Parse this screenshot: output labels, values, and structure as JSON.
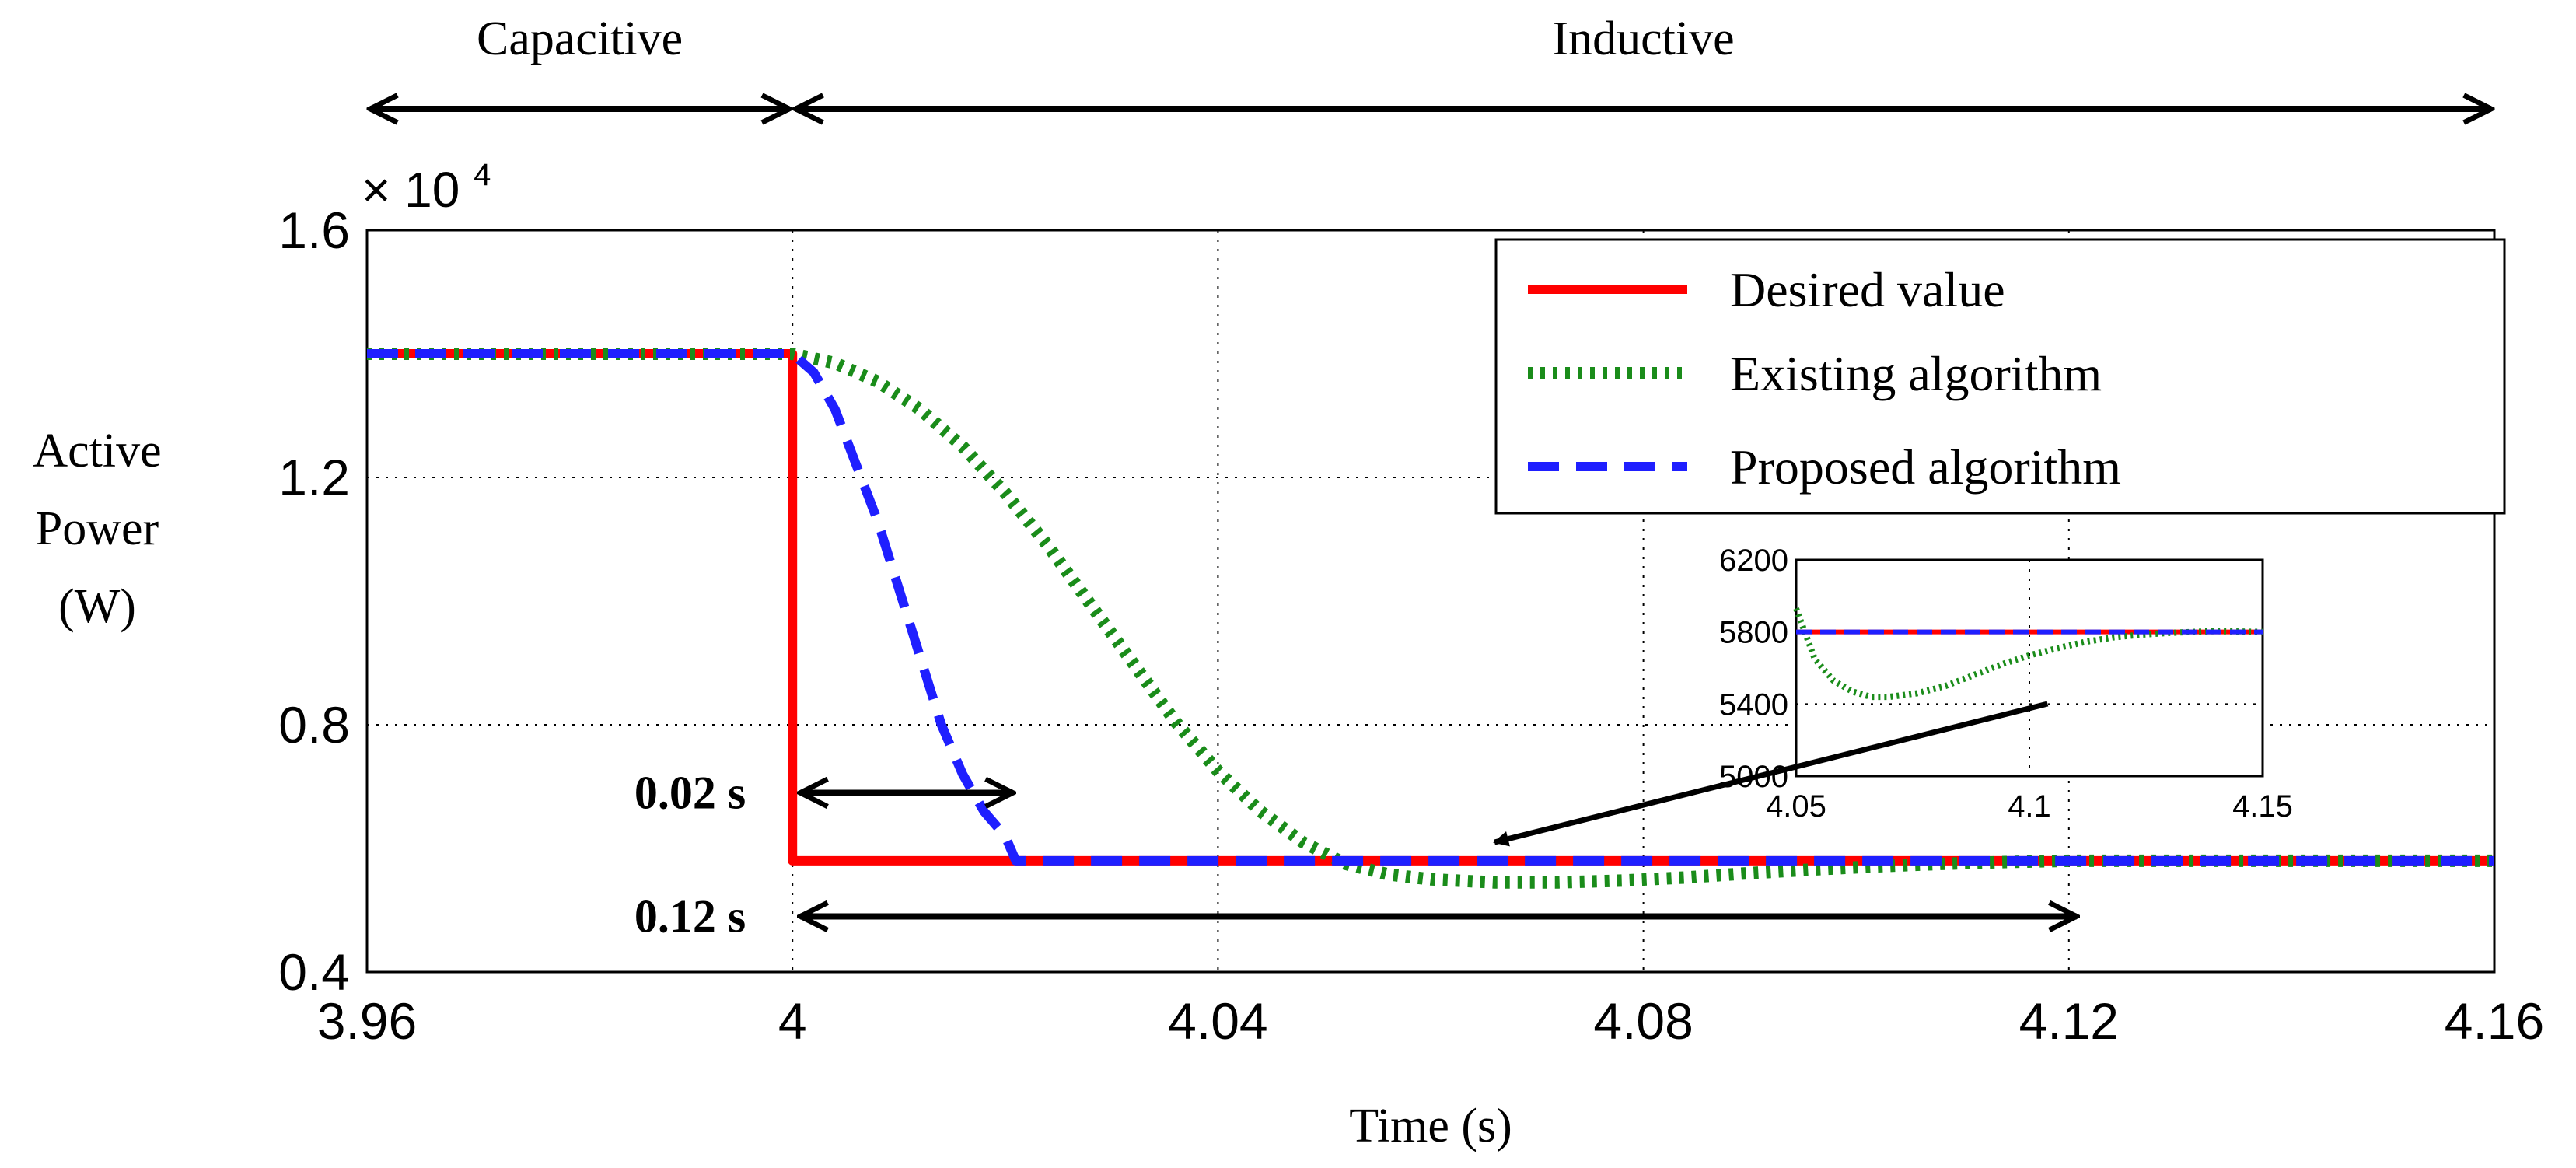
{
  "chart_data": [
    {
      "id": "main",
      "type": "line",
      "title": "",
      "xlabel": "Time (s)",
      "ylabel": [
        "Active",
        "Power",
        "(W)"
      ],
      "xlim": [
        3.96,
        4.16
      ],
      "ylim": [
        0.4,
        1.6
      ],
      "y_scale_label": "× 10",
      "y_scale_exp": "4",
      "xticks": [
        3.96,
        4,
        4.04,
        4.08,
        4.12,
        4.16
      ],
      "xtick_labels": [
        "3.96",
        "4",
        "4.04",
        "4.08",
        "4.12",
        "4.16"
      ],
      "yticks": [
        0.4,
        0.8,
        1.2,
        1.6
      ],
      "ytick_labels": [
        "0.4",
        "0.8",
        "1.2",
        "1.6"
      ],
      "grid": true,
      "legend": "top-right",
      "series": [
        {
          "name": "Desired value",
          "color": "#ff0000",
          "style": "solid",
          "x": [
            3.96,
            4.0,
            4.0,
            4.16
          ],
          "y": [
            1.4,
            1.4,
            0.58,
            0.58
          ]
        },
        {
          "name": "Existing algorithm",
          "color": "#1a8c1a",
          "style": "dotted",
          "x": [
            3.96,
            4.0,
            4.004,
            4.008,
            4.012,
            4.016,
            4.02,
            4.024,
            4.028,
            4.032,
            4.036,
            4.04,
            4.044,
            4.048,
            4.052,
            4.056,
            4.06,
            4.066,
            4.072,
            4.078,
            4.084,
            4.09,
            4.096,
            4.102,
            4.108,
            4.114,
            4.12,
            4.16
          ],
          "y": [
            1.4,
            1.4,
            1.385,
            1.355,
            1.31,
            1.25,
            1.175,
            1.09,
            0.995,
            0.9,
            0.805,
            0.725,
            0.66,
            0.61,
            0.575,
            0.558,
            0.55,
            0.545,
            0.545,
            0.548,
            0.553,
            0.56,
            0.566,
            0.571,
            0.575,
            0.578,
            0.58,
            0.58
          ]
        },
        {
          "name": "Proposed algorithm",
          "color": "#1f1fff",
          "style": "dashed",
          "x": [
            3.96,
            4.0,
            4.002,
            4.004,
            4.006,
            4.008,
            4.01,
            4.012,
            4.014,
            4.016,
            4.018,
            4.02,
            4.021,
            4.16
          ],
          "y": [
            1.4,
            1.4,
            1.37,
            1.31,
            1.22,
            1.13,
            1.02,
            0.91,
            0.8,
            0.72,
            0.66,
            0.62,
            0.58,
            0.58
          ]
        }
      ],
      "annotations": [
        {
          "text": "0.02 s",
          "x_start": 4.0,
          "x_end": 4.02,
          "y": 0.69,
          "label_side": "left"
        },
        {
          "text": "0.12 s",
          "x_start": 4.0,
          "x_end": 4.12,
          "y": 0.49,
          "label_side": "left"
        }
      ]
    },
    {
      "id": "inset",
      "type": "line",
      "title": "",
      "xlim": [
        4.05,
        4.15
      ],
      "ylim": [
        5000,
        6200
      ],
      "xticks": [
        4.05,
        4.1,
        4.15
      ],
      "xtick_labels": [
        "4.05",
        "4.1",
        "4.15"
      ],
      "yticks": [
        5000,
        5400,
        5800,
        6200
      ],
      "ytick_labels": [
        "5000",
        "5400",
        "5800",
        "6200"
      ],
      "grid": true,
      "series": [
        {
          "name": "Desired value",
          "color": "#ff0000",
          "style": "solid",
          "x": [
            4.05,
            4.15
          ],
          "y": [
            5800,
            5800
          ]
        },
        {
          "name": "Existing algorithm",
          "color": "#1a8c1a",
          "style": "dotted",
          "x": [
            4.05,
            4.054,
            4.058,
            4.062,
            4.066,
            4.07,
            4.076,
            4.082,
            4.088,
            4.094,
            4.1,
            4.106,
            4.112,
            4.118,
            4.124,
            4.13,
            4.14,
            4.15
          ],
          "y": [
            5930,
            5650,
            5530,
            5470,
            5440,
            5440,
            5460,
            5500,
            5560,
            5620,
            5670,
            5710,
            5745,
            5770,
            5785,
            5795,
            5805,
            5800
          ]
        },
        {
          "name": "Proposed algorithm",
          "color": "#1f1fff",
          "style": "dashed",
          "x": [
            4.05,
            4.15
          ],
          "y": [
            5800,
            5800
          ]
        }
      ]
    }
  ],
  "regions": [
    {
      "label": "Capacitive",
      "x_start": 3.96,
      "x_end": 4.0
    },
    {
      "label": "Inductive",
      "x_start": 4.0,
      "x_end": 4.16
    }
  ],
  "callout": {
    "from_x": 4.118,
    "from_y": 6030,
    "to_x": 4.066,
    "to_y": 0.61
  }
}
